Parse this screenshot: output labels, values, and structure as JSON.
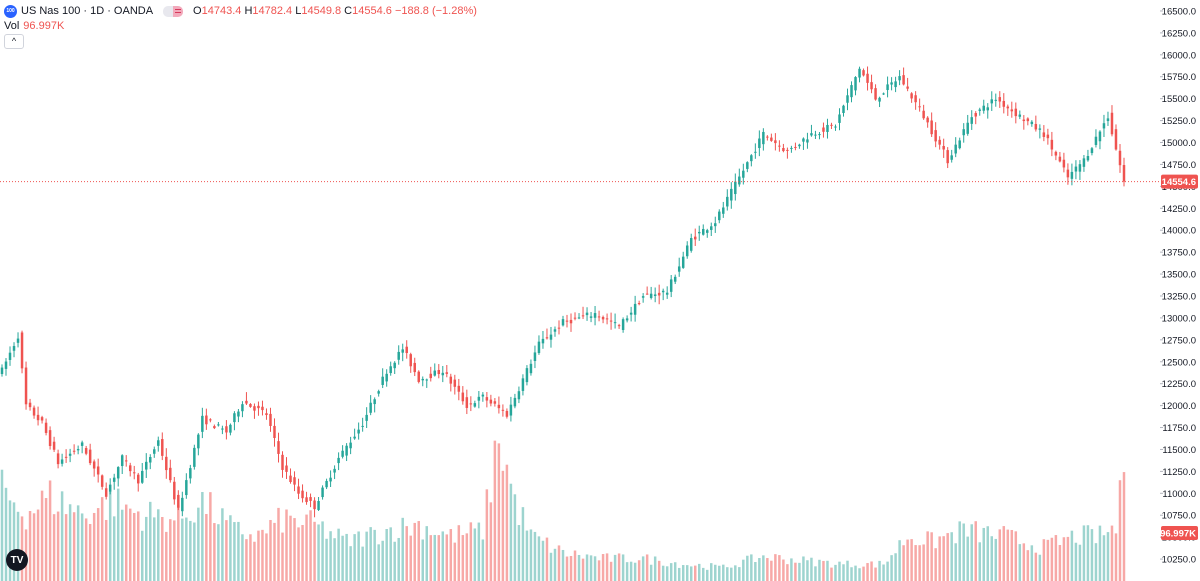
{
  "legend": {
    "logo_text": "100",
    "symbol": "US Nas 100 · 1D · OANDA",
    "o_label": "O",
    "o_value": "14743.4",
    "h_label": "H",
    "h_value": "14782.4",
    "l_label": "L",
    "l_value": "14549.8",
    "c_label": "C",
    "c_value": "14554.6",
    "change": "−188.8 (−1.28%)"
  },
  "volume_legend": {
    "label": "Vol",
    "value": "96.997K"
  },
  "collapse_icon": "chevron-up-icon",
  "collapse_glyph": "^",
  "watermark": {
    "icon": "tradingview-logo-icon",
    "text": "TV"
  },
  "colors": {
    "up": "#26a69a",
    "down": "#ef5350",
    "up_volume": "#9dd4cf",
    "down_volume": "#f7a8a6",
    "price_label_bg": "#ef5350",
    "axis_text": "#131722"
  },
  "chart_data": {
    "type": "candlestick",
    "y_axis": {
      "position": "right",
      "ylim": [
        10000,
        16625
      ],
      "ticks": [
        "16500.0",
        "16250.0",
        "16000.0",
        "15750.0",
        "15500.0",
        "15250.0",
        "15000.0",
        "14750.0",
        "14500.0",
        "14250.0",
        "14000.0",
        "13750.0",
        "13500.0",
        "13250.0",
        "13000.0",
        "12750.0",
        "12500.0",
        "12250.0",
        "12000.0",
        "11750.0",
        "11500.0",
        "11250.0",
        "11000.0",
        "10750.0",
        "10500.0",
        "10250.0"
      ]
    },
    "last_price": {
      "value": 14554.6,
      "label": "14554.6"
    },
    "volume_last": {
      "value": 96997,
      "label": "96.997K"
    },
    "anchors": [
      [
        0,
        12400
      ],
      [
        4,
        12800
      ],
      [
        6,
        12000
      ],
      [
        10,
        11800
      ],
      [
        14,
        11350
      ],
      [
        20,
        11550
      ],
      [
        26,
        11000
      ],
      [
        30,
        11400
      ],
      [
        34,
        11150
      ],
      [
        39,
        11600
      ],
      [
        44,
        10800
      ],
      [
        50,
        11850
      ],
      [
        56,
        11700
      ],
      [
        60,
        12050
      ],
      [
        66,
        11900
      ],
      [
        70,
        11300
      ],
      [
        74,
        11000
      ],
      [
        78,
        10850
      ],
      [
        84,
        11400
      ],
      [
        90,
        11800
      ],
      [
        96,
        12400
      ],
      [
        100,
        12650
      ],
      [
        104,
        12300
      ],
      [
        110,
        12400
      ],
      [
        116,
        12000
      ],
      [
        120,
        12100
      ],
      [
        126,
        11900
      ],
      [
        134,
        12700
      ],
      [
        140,
        12950
      ],
      [
        148,
        13050
      ],
      [
        154,
        12900
      ],
      [
        160,
        13250
      ],
      [
        166,
        13300
      ],
      [
        172,
        13900
      ],
      [
        178,
        14100
      ],
      [
        184,
        14600
      ],
      [
        190,
        15100
      ],
      [
        196,
        14900
      ],
      [
        202,
        15100
      ],
      [
        208,
        15200
      ],
      [
        214,
        15850
      ],
      [
        218,
        15500
      ],
      [
        224,
        15750
      ],
      [
        230,
        15300
      ],
      [
        236,
        14800
      ],
      [
        242,
        15300
      ],
      [
        248,
        15500
      ],
      [
        254,
        15300
      ],
      [
        260,
        15100
      ],
      [
        266,
        14600
      ],
      [
        270,
        14800
      ],
      [
        276,
        15300
      ],
      [
        280,
        14554.6
      ]
    ],
    "volume_anchors": [
      [
        0,
        80000
      ],
      [
        6,
        60000
      ],
      [
        12,
        75000
      ],
      [
        20,
        60000
      ],
      [
        28,
        70000
      ],
      [
        34,
        60000
      ],
      [
        44,
        55000
      ],
      [
        50,
        70000
      ],
      [
        58,
        45000
      ],
      [
        64,
        40000
      ],
      [
        70,
        55000
      ],
      [
        78,
        50000
      ],
      [
        86,
        35000
      ],
      [
        96,
        45000
      ],
      [
        104,
        50000
      ],
      [
        112,
        40000
      ],
      [
        120,
        45000
      ],
      [
        124,
        130000
      ],
      [
        128,
        70000
      ],
      [
        132,
        40000
      ],
      [
        140,
        25000
      ],
      [
        150,
        20000
      ],
      [
        160,
        20000
      ],
      [
        170,
        15000
      ],
      [
        180,
        12000
      ],
      [
        190,
        22000
      ],
      [
        200,
        18000
      ],
      [
        210,
        15000
      ],
      [
        220,
        15000
      ],
      [
        226,
        40000
      ],
      [
        232,
        35000
      ],
      [
        240,
        45000
      ],
      [
        250,
        40000
      ],
      [
        260,
        30000
      ],
      [
        268,
        40000
      ],
      [
        274,
        40000
      ],
      [
        278,
        48000
      ],
      [
        280,
        96997
      ]
    ],
    "volume_max": 130000
  }
}
